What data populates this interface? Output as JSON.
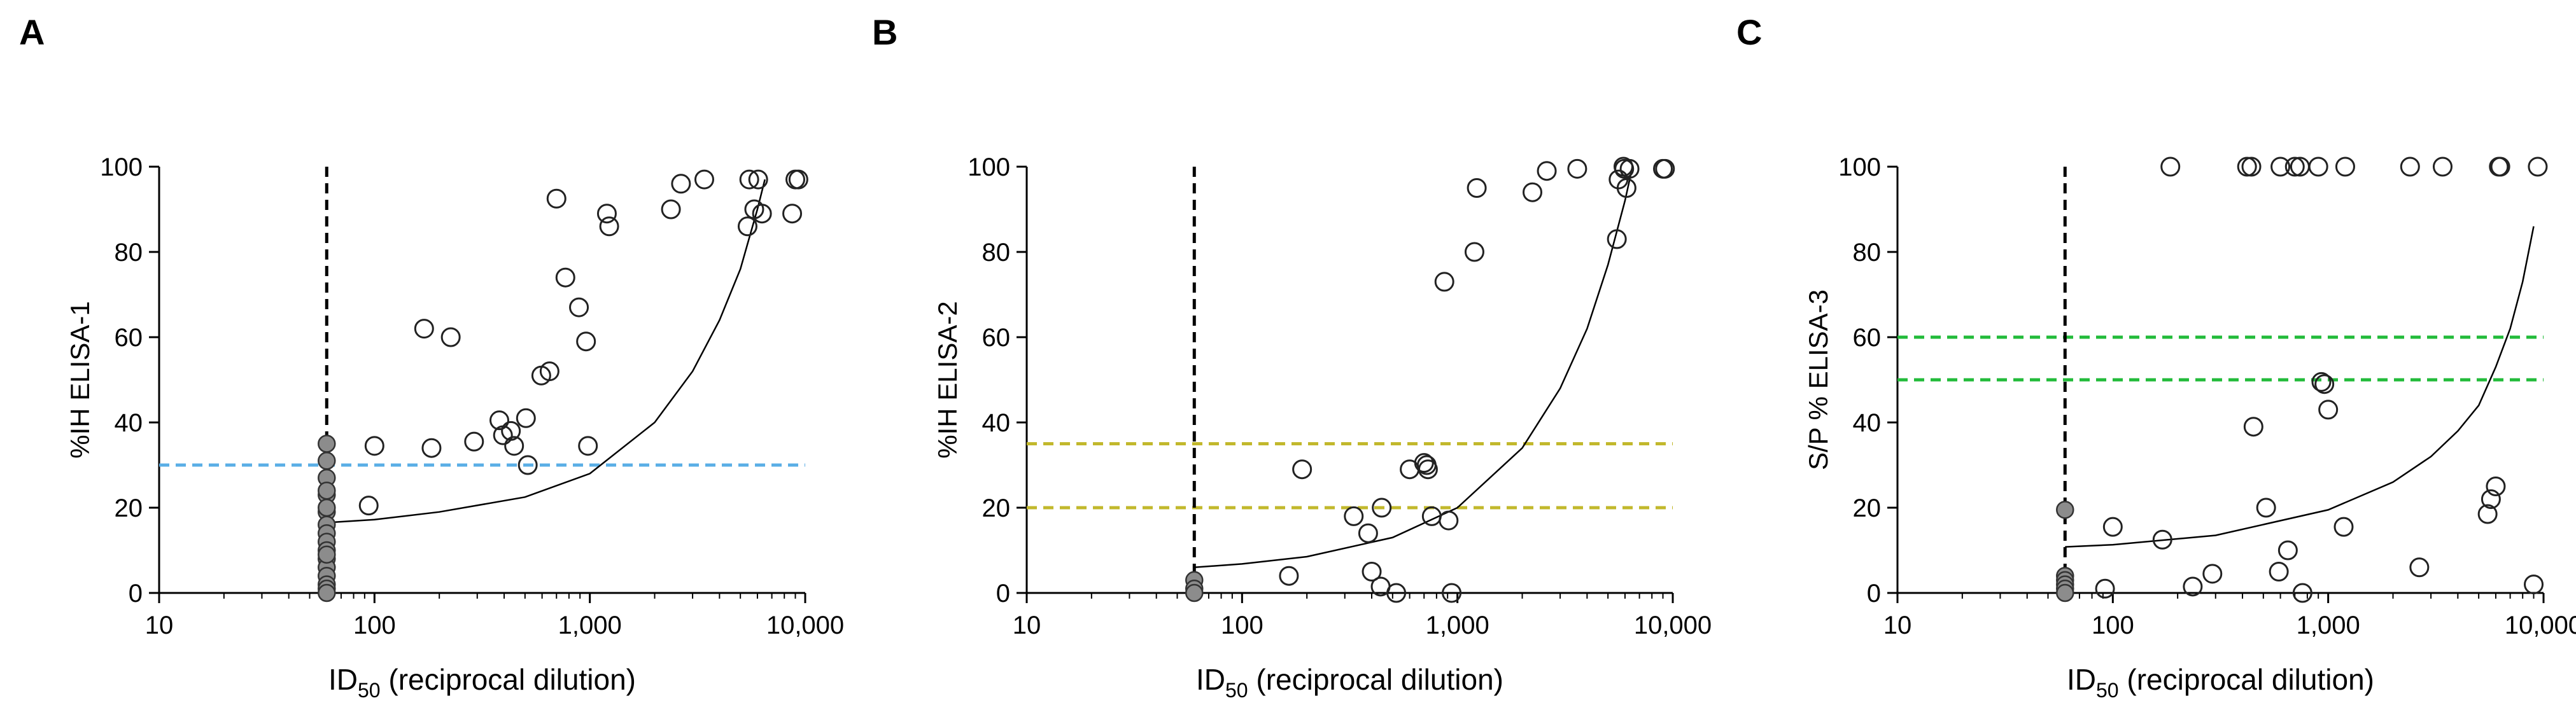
{
  "figure": {
    "panels": [
      "A",
      "B",
      "C"
    ],
    "xlabel_main": "ID",
    "xlabel_sub": "50",
    "xlabel_rest": " (reciprocal dilution)"
  },
  "chart_data": [
    {
      "panel": "A",
      "type": "scatter",
      "title": "",
      "xlabel": "ID50 (reciprocal dilution)",
      "ylabel": "%IH ELISA-1",
      "xscale": "log",
      "xlim": [
        10,
        10000
      ],
      "ylim": [
        0,
        100
      ],
      "xticks": [
        10,
        100,
        1000,
        10000
      ],
      "xtick_labels": [
        "10",
        "100",
        "1,000",
        "10,000"
      ],
      "yticks": [
        0,
        20,
        40,
        60,
        80,
        100
      ],
      "ytick_labels": [
        "0",
        "20",
        "40",
        "60",
        "80",
        "100"
      ],
      "vline": {
        "x": 60,
        "style": "dashed",
        "color": "#000000"
      },
      "hlines": [
        {
          "y": 30,
          "color": "#5aaee6"
        }
      ],
      "curve": {
        "x": [
          60,
          100,
          200,
          500,
          1000,
          2000,
          3000,
          4000,
          5000,
          6000,
          6500
        ],
        "y": [
          16.5,
          17.2,
          19,
          22.5,
          28,
          40,
          52,
          64,
          76,
          90,
          97
        ]
      },
      "filled_points": {
        "x": [
          60,
          60,
          60,
          60,
          60,
          60,
          60,
          60,
          60,
          60,
          60,
          60,
          60,
          60,
          60,
          60,
          60,
          60
        ],
        "y": [
          35,
          31,
          27,
          23,
          19,
          16,
          14,
          12,
          10,
          8,
          6,
          4,
          2,
          1,
          0,
          20,
          24,
          9
        ]
      },
      "open_points": {
        "x": [
          94,
          100,
          184,
          170,
          226,
          290,
          380,
          395,
          430,
          445,
          515,
          505,
          595,
          650,
          700,
          770,
          890,
          960,
          980,
          1200,
          1230,
          2380,
          2650,
          3400,
          5500,
          5400,
          5800,
          6300,
          6050,
          8700,
          9000,
          9300
        ],
        "y": [
          20.5,
          34.5,
          34,
          62,
          60,
          35.5,
          40.5,
          37,
          38,
          34.5,
          30,
          41,
          51,
          52,
          92.5,
          74,
          67,
          59,
          34.5,
          89,
          86,
          90,
          96,
          97,
          97,
          86,
          90,
          89,
          97,
          89,
          97,
          97
        ]
      }
    },
    {
      "panel": "B",
      "type": "scatter",
      "title": "",
      "xlabel": "ID50 (reciprocal dilution)",
      "ylabel": "%IH ELISA-2",
      "xscale": "log",
      "xlim": [
        10,
        10000
      ],
      "ylim": [
        0,
        100
      ],
      "xticks": [
        10,
        100,
        1000,
        10000
      ],
      "xtick_labels": [
        "10",
        "100",
        "1,000",
        "10,000"
      ],
      "yticks": [
        0,
        20,
        40,
        60,
        80,
        100
      ],
      "ytick_labels": [
        "0",
        "20",
        "40",
        "60",
        "80",
        "100"
      ],
      "vline": {
        "x": 60,
        "style": "dashed",
        "color": "#000000"
      },
      "hlines": [
        {
          "y": 35,
          "color": "#c2b82c"
        },
        {
          "y": 20,
          "color": "#c2b82c"
        }
      ],
      "curve": {
        "x": [
          60,
          100,
          200,
          500,
          1000,
          2000,
          3000,
          4000,
          5000,
          6000,
          6500
        ],
        "y": [
          6,
          6.8,
          8.5,
          13,
          20,
          34,
          48,
          62,
          77,
          92,
          100
        ]
      },
      "filled_points": {
        "x": [
          60,
          60,
          60
        ],
        "y": [
          3,
          1,
          0
        ]
      },
      "open_points": {
        "x": [
          165,
          190,
          330,
          385,
          400,
          440,
          445,
          520,
          600,
          700,
          720,
          730,
          760,
          870,
          910,
          940,
          1200,
          1230,
          2230,
          2600,
          3600,
          5500,
          5600,
          5900,
          5950,
          6100,
          6300,
          9000,
          9200
        ],
        "y": [
          4,
          29,
          18,
          14,
          5,
          1.5,
          20,
          0,
          29,
          30.5,
          30,
          29,
          18,
          73,
          17,
          0,
          80,
          95,
          94,
          99,
          99.5,
          83,
          97,
          100,
          99.5,
          95,
          99.5,
          99.5,
          99.5
        ]
      }
    },
    {
      "panel": "C",
      "type": "scatter",
      "title": "",
      "xlabel": "ID50 (reciprocal dilution)",
      "ylabel": "S/P % ELISA-3",
      "xscale": "log",
      "xlim": [
        10,
        10000
      ],
      "ylim": [
        0,
        100
      ],
      "xticks": [
        10,
        100,
        1000,
        10000
      ],
      "xtick_labels": [
        "10",
        "100",
        "1,000",
        "10,000"
      ],
      "yticks": [
        0,
        20,
        40,
        60,
        80,
        100
      ],
      "ytick_labels": [
        "0",
        "20",
        "40",
        "60",
        "80",
        "100"
      ],
      "vline": {
        "x": 60,
        "style": "dashed",
        "color": "#000000"
      },
      "hlines": [
        {
          "y": 60,
          "color": "#22bb3a"
        },
        {
          "y": 50,
          "color": "#22bb3a"
        }
      ],
      "curve": {
        "x": [
          60,
          100,
          300,
          1000,
          2000,
          3000,
          4000,
          5000,
          6000,
          7000,
          8000,
          9000
        ],
        "y": [
          10.8,
          11.3,
          13.5,
          19.5,
          26,
          32,
          38,
          44,
          53,
          62,
          73,
          86
        ]
      },
      "filled_points": {
        "x": [
          60,
          60,
          60,
          60,
          60,
          60
        ],
        "y": [
          19.5,
          4,
          3,
          2,
          1,
          0
        ]
      },
      "open_points": {
        "x": [
          92,
          100,
          170,
          185,
          235,
          290,
          420,
          440,
          450,
          515,
          590,
          600,
          650,
          700,
          740,
          760,
          900,
          930,
          960,
          1000,
          1180,
          1200,
          2400,
          2650,
          3400,
          5500,
          5700,
          6000,
          6200,
          6300,
          9000,
          9400
        ],
        "y": [
          1,
          15.5,
          12.5,
          100,
          1.5,
          4.5,
          100,
          100,
          39,
          20,
          5,
          100,
          10,
          100,
          100,
          0,
          100,
          49.5,
          49,
          43,
          15.5,
          100,
          100,
          6,
          100,
          18.5,
          22,
          25,
          100,
          100,
          2,
          100
        ]
      }
    }
  ]
}
